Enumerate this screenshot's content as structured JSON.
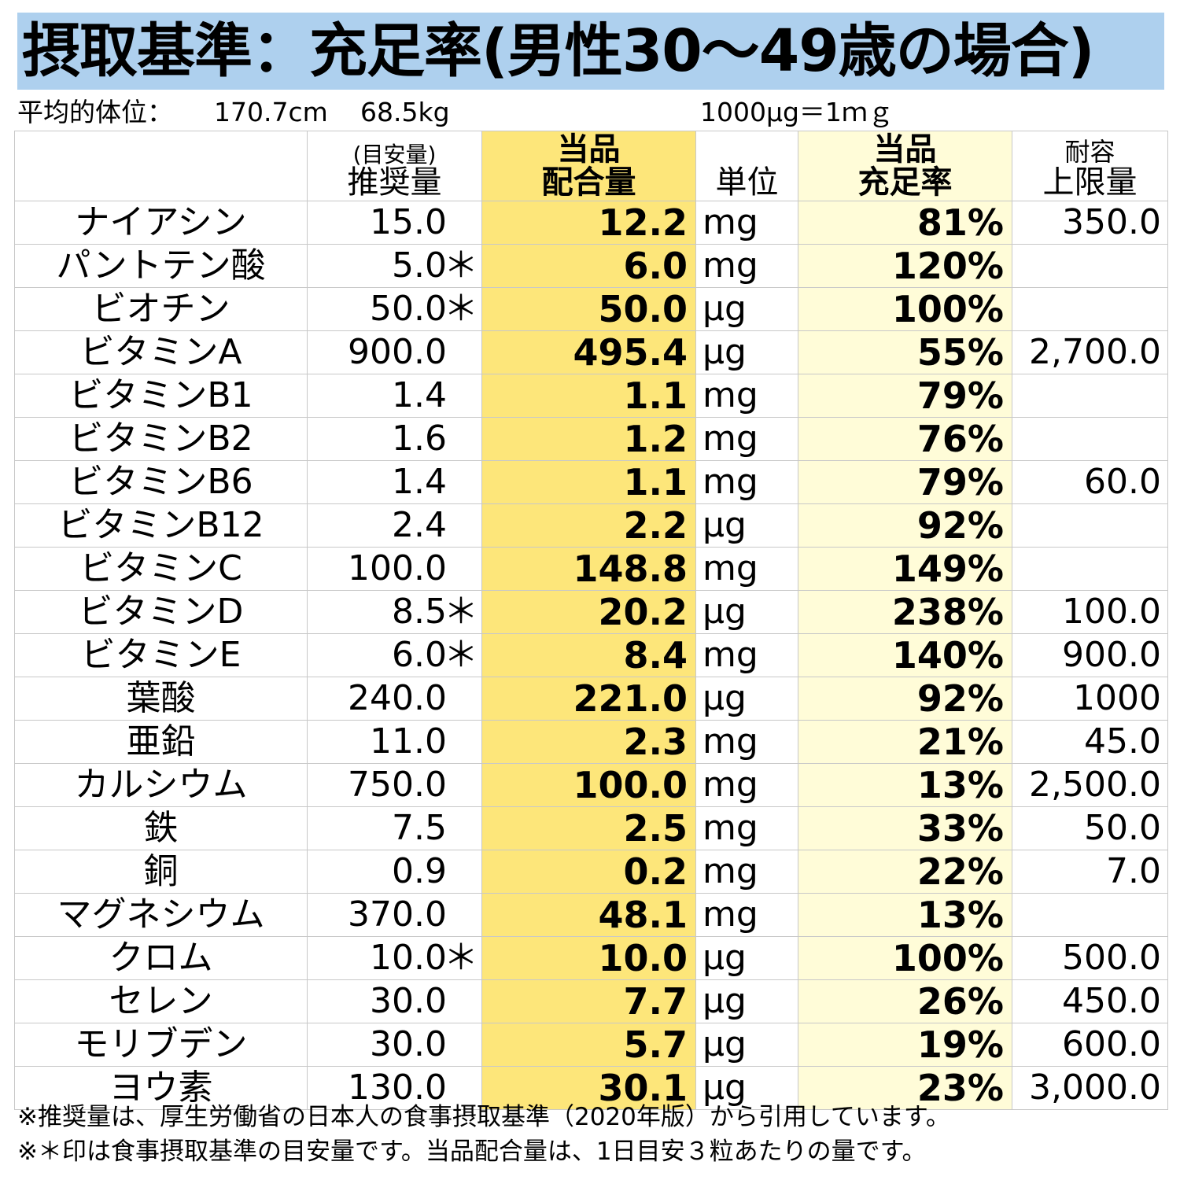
{
  "title": "摂取基準：充足率(男性30～49歳の場合)",
  "info": {
    "avg_label": "平均的体位：",
    "height": "170.7cm",
    "weight": "68.5kg",
    "conversion": "1000μg＝1ｍｇ"
  },
  "header": {
    "recommended_sub": "(目安量)",
    "recommended": "推奨量",
    "amount_line1": "当品",
    "amount_line2": "配合量",
    "unit": "単位",
    "rate_line1": "当品",
    "rate_line2": "充足率",
    "upper_line1": "耐容",
    "upper_line2": "上限量"
  },
  "rows": [
    {
      "name": "ナイアシン",
      "rec": "15.0",
      "ast": "",
      "amount": "12.2",
      "unit": "mg",
      "rate": "81%",
      "upper": "350.0"
    },
    {
      "name": "パントテン酸",
      "rec": "5.0",
      "ast": "＊",
      "amount": "6.0",
      "unit": "mg",
      "rate": "120%",
      "upper": ""
    },
    {
      "name": "ビオチン",
      "rec": "50.0",
      "ast": "＊",
      "amount": "50.0",
      "unit": "μg",
      "rate": "100%",
      "upper": ""
    },
    {
      "name": "ビタミンA",
      "rec": "900.0",
      "ast": "",
      "amount": "495.4",
      "unit": "μg",
      "rate": "55%",
      "upper": "2,700.0"
    },
    {
      "name": "ビタミンB1",
      "rec": "1.4",
      "ast": "",
      "amount": "1.1",
      "unit": "mg",
      "rate": "79%",
      "upper": ""
    },
    {
      "name": "ビタミンB2",
      "rec": "1.6",
      "ast": "",
      "amount": "1.2",
      "unit": "mg",
      "rate": "76%",
      "upper": ""
    },
    {
      "name": "ビタミンB6",
      "rec": "1.4",
      "ast": "",
      "amount": "1.1",
      "unit": "mg",
      "rate": "79%",
      "upper": "60.0"
    },
    {
      "name": "ビタミンB12",
      "rec": "2.4",
      "ast": "",
      "amount": "2.2",
      "unit": "μg",
      "rate": "92%",
      "upper": ""
    },
    {
      "name": "ビタミンC",
      "rec": "100.0",
      "ast": "",
      "amount": "148.8",
      "unit": "mg",
      "rate": "149%",
      "upper": ""
    },
    {
      "name": "ビタミンD",
      "rec": "8.5",
      "ast": "＊",
      "amount": "20.2",
      "unit": "μg",
      "rate": "238%",
      "upper": "100.0"
    },
    {
      "name": "ビタミンE",
      "rec": "6.0",
      "ast": "＊",
      "amount": "8.4",
      "unit": "mg",
      "rate": "140%",
      "upper": "900.0"
    },
    {
      "name": "葉酸",
      "rec": "240.0",
      "ast": "",
      "amount": "221.0",
      "unit": "μg",
      "rate": "92%",
      "upper": "1000"
    },
    {
      "name": "亜鉛",
      "rec": "11.0",
      "ast": "",
      "amount": "2.3",
      "unit": "mg",
      "rate": "21%",
      "upper": "45.0"
    },
    {
      "name": "カルシウム",
      "rec": "750.0",
      "ast": "",
      "amount": "100.0",
      "unit": "mg",
      "rate": "13%",
      "upper": "2,500.0"
    },
    {
      "name": "鉄",
      "rec": "7.5",
      "ast": "",
      "amount": "2.5",
      "unit": "mg",
      "rate": "33%",
      "upper": "50.0"
    },
    {
      "name": "銅",
      "rec": "0.9",
      "ast": "",
      "amount": "0.2",
      "unit": "mg",
      "rate": "22%",
      "upper": "7.0"
    },
    {
      "name": "マグネシウム",
      "rec": "370.0",
      "ast": "",
      "amount": "48.1",
      "unit": "mg",
      "rate": "13%",
      "upper": ""
    },
    {
      "name": "クロム",
      "rec": "10.0",
      "ast": "＊",
      "amount": "10.0",
      "unit": "μg",
      "rate": "100%",
      "upper": "500.0"
    },
    {
      "name": "セレン",
      "rec": "30.0",
      "ast": "",
      "amount": "7.7",
      "unit": "μg",
      "rate": "26%",
      "upper": "450.0"
    },
    {
      "name": "モリブデン",
      "rec": "30.0",
      "ast": "",
      "amount": "5.7",
      "unit": "μg",
      "rate": "19%",
      "upper": "600.0"
    },
    {
      "name": "ヨウ素",
      "rec": "130.0",
      "ast": "",
      "amount": "30.1",
      "unit": "μg",
      "rate": "23%",
      "upper": "3,000.0"
    }
  ],
  "footnotes": [
    "※推奨量は、厚生労働省の日本人の食事摂取基準（2020年版）から引用しています。",
    "※＊印は食事摂取基準の目安量です。当品配合量は、1日目安３粒あたりの量です。"
  ],
  "colors": {
    "title_bg": "#aed0ee",
    "amount_column_bg": "#fde67a",
    "rate_column_bg": "#fffcd8",
    "grid_line": "#c8c8c8"
  }
}
